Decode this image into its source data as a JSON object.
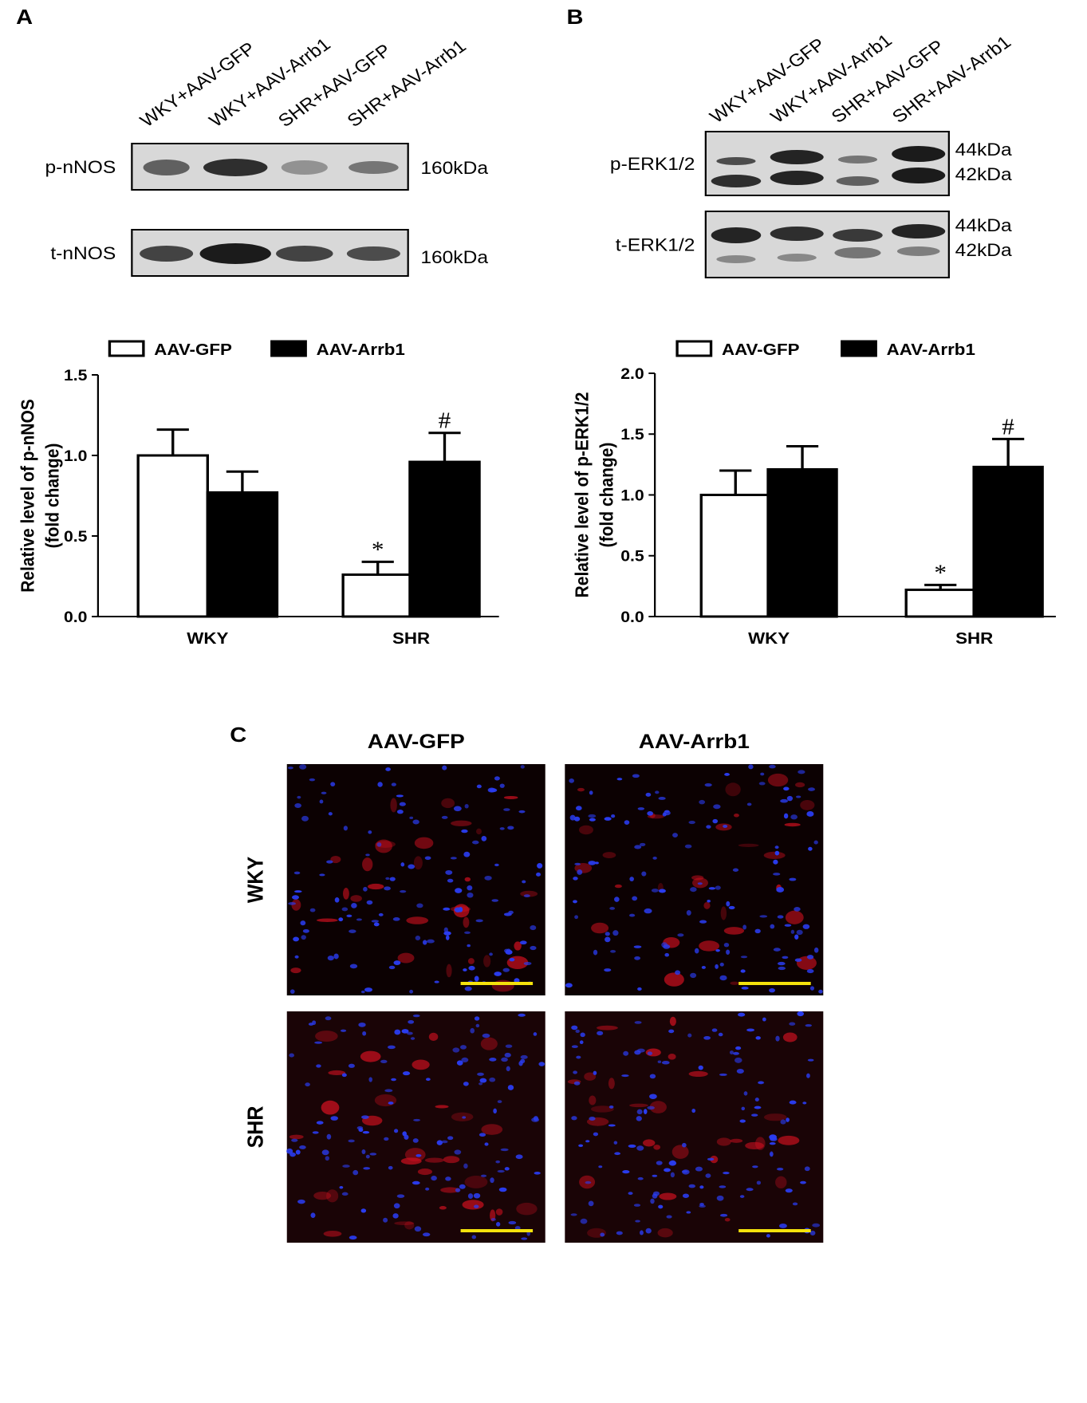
{
  "panels": {
    "a": "A",
    "b": "B",
    "c": "C"
  },
  "blot_a": {
    "lanes": [
      "WKY+AAV-GFP",
      "WKY+AAV-Arrb1",
      "SHR+AAV-GFP",
      "SHR+AAV-Arrb1"
    ],
    "rows": [
      {
        "label": "p-nNOS",
        "sizes": [
          "160kDa"
        ]
      },
      {
        "label": "t-nNOS",
        "sizes": [
          "160kDa"
        ]
      }
    ]
  },
  "blot_b": {
    "lanes": [
      "WKY+AAV-GFP",
      "WKY+AAV-Arrb1",
      "SHR+AAV-GFP",
      "SHR+AAV-Arrb1"
    ],
    "rows": [
      {
        "label": "p-ERK1/2",
        "sizes": [
          "44kDa",
          "42kDa"
        ]
      },
      {
        "label": "t-ERK1/2",
        "sizes": [
          "44kDa",
          "42kDa"
        ]
      }
    ]
  },
  "chart_data": [
    {
      "type": "bar",
      "ylabel": [
        "Relative level of p-nNOS",
        "(fold change)"
      ],
      "categories": [
        "WKY",
        "SHR"
      ],
      "series": [
        {
          "name": "AAV-GFP",
          "color": "#ffffff",
          "values": [
            1.0,
            0.26
          ],
          "errors": [
            0.16,
            0.08
          ]
        },
        {
          "name": "AAV-Arrb1",
          "color": "#000000",
          "values": [
            0.77,
            0.96
          ],
          "errors": [
            0.13,
            0.18
          ]
        }
      ],
      "annotations": [
        "*",
        "#"
      ],
      "ylim": [
        0,
        1.5
      ],
      "yticks": [
        {
          "value": 0,
          "label": "0.0"
        },
        0.5,
        {
          "value": 1,
          "label": "1.0"
        },
        1.5
      ]
    },
    {
      "type": "bar",
      "ylabel": [
        "Relative level of p-ERK1/2",
        "(fold change)"
      ],
      "categories": [
        "WKY",
        "SHR"
      ],
      "series": [
        {
          "name": "AAV-GFP",
          "color": "#ffffff",
          "values": [
            1.0,
            0.22
          ],
          "errors": [
            0.2,
            0.04
          ]
        },
        {
          "name": "AAV-Arrb1",
          "color": "#000000",
          "values": [
            1.21,
            1.23
          ],
          "errors": [
            0.19,
            0.23
          ]
        }
      ],
      "annotations": [
        "*",
        "#"
      ],
      "ylim": [
        0,
        2.0
      ],
      "yticks": [
        {
          "value": 0,
          "label": "0.0"
        },
        0.5,
        {
          "value": 1,
          "label": "1.0"
        },
        1.5,
        {
          "value": 2,
          "label": "2.0"
        }
      ]
    }
  ],
  "micrographs": {
    "columns": [
      "AAV-GFP",
      "AAV-Arrb1"
    ],
    "rows": [
      "WKY",
      "SHR"
    ]
  }
}
